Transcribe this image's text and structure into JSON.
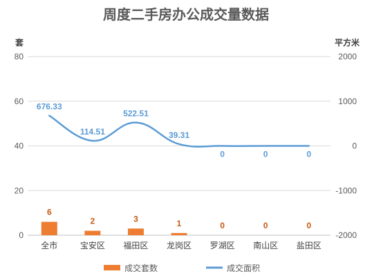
{
  "chart_data": {
    "type": "bar+line",
    "title": "周度二手房办公成交量数据",
    "y_left_label": "套",
    "y_right_label": "平方米",
    "categories": [
      "全市",
      "宝安区",
      "福田区",
      "龙岗区",
      "罗湖区",
      "南山区",
      "盐田区"
    ],
    "y_left_range": [
      0,
      80
    ],
    "y_left_ticks": [
      "0",
      "20",
      "40",
      "60",
      "80"
    ],
    "y_right_range": [
      -2000,
      2000
    ],
    "y_right_ticks": [
      "-2000",
      "-1000",
      "0",
      "1000",
      "2000"
    ],
    "grid": true,
    "legend_position": "bottom",
    "series": [
      {
        "name": "成交套数",
        "type": "bar",
        "axis": "left",
        "color": "#ed7d31",
        "values": [
          6,
          2,
          3,
          1,
          0,
          0,
          0
        ],
        "labels": [
          "6",
          "2",
          "3",
          "1",
          "0",
          "0",
          "0"
        ]
      },
      {
        "name": "成交面积",
        "type": "line",
        "axis": "right",
        "color": "#5b9bd5",
        "values": [
          676.33,
          114.51,
          522.51,
          39.31,
          0,
          0,
          0
        ],
        "labels": [
          "676.33",
          "114.51",
          "522.51",
          "39.31",
          "0",
          "0",
          "0"
        ]
      }
    ]
  }
}
